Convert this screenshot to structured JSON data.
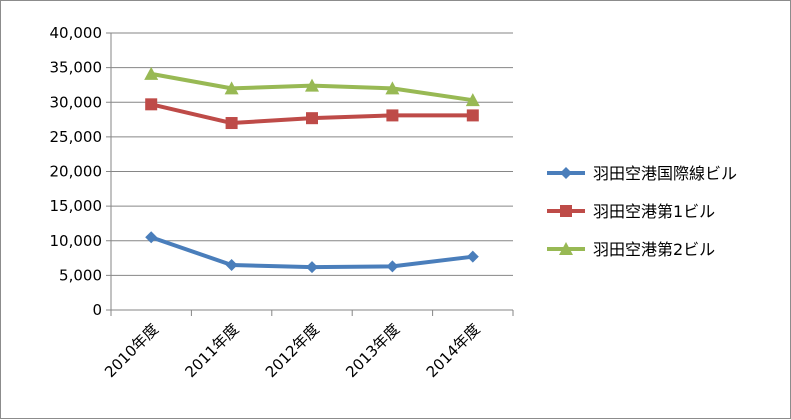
{
  "chart_data": {
    "type": "line",
    "title": "",
    "xlabel": "",
    "ylabel": "",
    "categories": [
      "2010年度",
      "2011年度",
      "2012年度",
      "2013年度",
      "2014年度"
    ],
    "ylim": [
      0,
      40000
    ],
    "yticks": [
      0,
      5000,
      10000,
      15000,
      20000,
      25000,
      30000,
      35000,
      40000
    ],
    "ytick_labels": [
      "0",
      "5,000",
      "10,000",
      "15,000",
      "20,000",
      "25,000",
      "30,000",
      "35,000",
      "40,000"
    ],
    "grid": "horizontal",
    "legend_position": "right",
    "series": [
      {
        "name": "羽田空港国際線ビル",
        "color": "#4a7ebb",
        "marker": "diamond",
        "values": [
          10500,
          6500,
          6200,
          6300,
          7700
        ]
      },
      {
        "name": "羽田空港第1ビル",
        "color": "#be4b48",
        "marker": "square",
        "values": [
          29700,
          27000,
          27700,
          28100,
          28100
        ]
      },
      {
        "name": "羽田空港第2ビル",
        "color": "#98b954",
        "marker": "triangle",
        "values": [
          34100,
          32000,
          32400,
          32000,
          30300
        ]
      }
    ]
  }
}
